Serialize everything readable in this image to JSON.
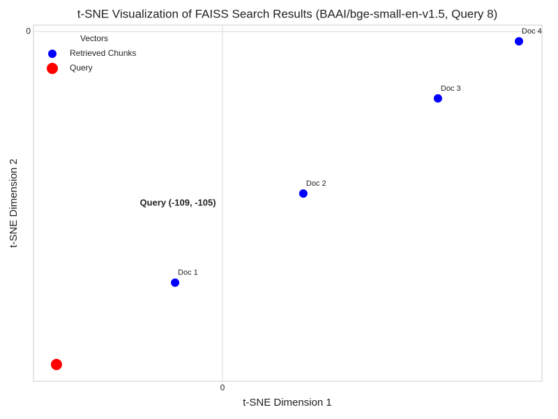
{
  "chart_data": {
    "type": "scatter",
    "title": "t-SNE Visualization of FAISS Search Results (BAAI/bge-small-en-v1.5, Query 8)",
    "xlabel": "t-SNE Dimension 1",
    "ylabel": "t-SNE Dimension 2",
    "xlim": [
      -124.1,
      209.8
    ],
    "ylim": [
      -110.3,
      2.0
    ],
    "xticks": [
      0
    ],
    "yticks": [
      0
    ],
    "grid": true,
    "legend_title": "Vectors",
    "legend": "upper left",
    "series": [
      {
        "name": "Retrieved Chunks",
        "color": "#0000ff",
        "size": 6,
        "x": [
          -31.1,
          53.1,
          141.5,
          194.7
        ],
        "values": [
          -79.2,
          -51.1,
          -21.1,
          -3.1
        ],
        "labels": [
          "Doc 1",
          "Doc 2",
          "Doc 3",
          "Doc 4"
        ]
      },
      {
        "name": "Query",
        "color": "#ff0000",
        "size": 8,
        "x": [
          -109
        ],
        "values": [
          -105
        ]
      }
    ],
    "annotation": "Query (-109, -105)"
  }
}
